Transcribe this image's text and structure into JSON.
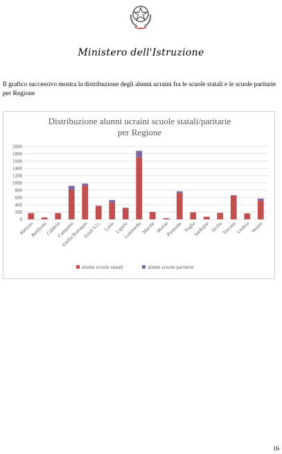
{
  "header": {
    "ministry_name": "Ministero dell'Istruzione",
    "emblem_icon": "italian-republic-emblem-icon"
  },
  "body_text": "Il grafico successivo mostra la distribuzione degli alunni ucraini fra le scuole statali e le scuole paritarie per Regione",
  "page_number": "16",
  "chart_data": {
    "type": "bar",
    "stacked": true,
    "title_line1": "Distribuzione alunni ucraini scuole statali/paritarie",
    "title_line2": "per Regione",
    "categories": [
      "Abruzzo",
      "Basilicata",
      "Calabria",
      "Campania",
      "Emilia Romagna",
      "Friuli V.G.",
      "Lazio",
      "Liguria",
      "Lombardia",
      "Marche",
      "Molise",
      "Piemonte",
      "Puglia",
      "Sardegna",
      "Sicilia",
      "Toscana",
      "Umbria",
      "Veneto"
    ],
    "series": [
      {
        "name": "alunni scuole statali",
        "color": "#c0504d",
        "values": [
          170,
          50,
          170,
          800,
          920,
          370,
          450,
          310,
          1700,
          200,
          30,
          720,
          190,
          70,
          170,
          650,
          160,
          510
        ]
      },
      {
        "name": "alunni scuole paritarie",
        "color": "#8064a2",
        "values": [
          5,
          2,
          5,
          120,
          60,
          5,
          80,
          10,
          180,
          5,
          2,
          50,
          5,
          3,
          10,
          15,
          5,
          60
        ]
      }
    ],
    "yticks": [
      "0",
      "200",
      "400",
      "600",
      "800",
      "1000",
      "1200",
      "1400",
      "1600",
      "1800",
      "2000"
    ],
    "ylim": [
      0,
      2000
    ],
    "grid": true,
    "legend_position": "bottom"
  }
}
